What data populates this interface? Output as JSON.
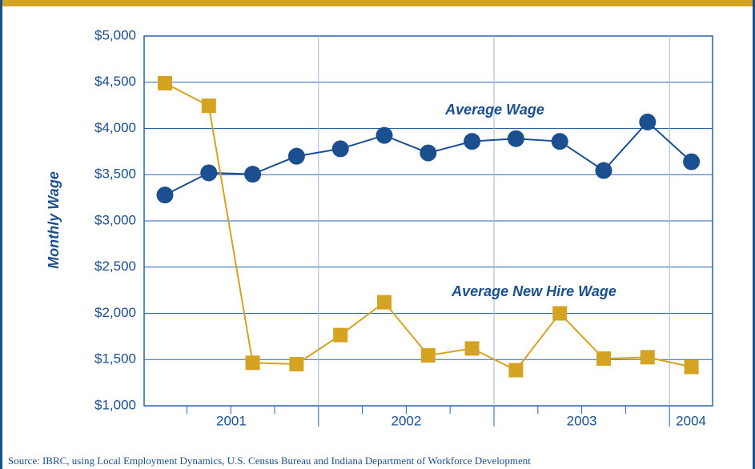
{
  "chart_data": {
    "type": "line",
    "y_label": "Monthly Wage",
    "categories": [
      "2001",
      null,
      null,
      null,
      "2002",
      null,
      null,
      null,
      "2003",
      null,
      null,
      null,
      "2004"
    ],
    "series": [
      {
        "name": "Average Wage",
        "color": "#1b4f8f",
        "marker": "circle",
        "values": [
          3280,
          3520,
          3505,
          3700,
          3780,
          3925,
          3735,
          3860,
          3890,
          3860,
          3545,
          4070,
          3640
        ]
      },
      {
        "name": "Average New Hire Wage",
        "color": "#d4a321",
        "marker": "square",
        "values": [
          4490,
          4245,
          1465,
          1450,
          1765,
          2120,
          1545,
          1620,
          1385,
          2000,
          1510,
          1525,
          1420
        ]
      }
    ],
    "ylim": [
      1000,
      5000
    ],
    "yticks": [
      {
        "value": 1000,
        "label": "$1,000"
      },
      {
        "value": 1500,
        "label": "$1,500"
      },
      {
        "value": 2000,
        "label": "$2,000"
      },
      {
        "value": 2500,
        "label": "$2,500"
      },
      {
        "value": 3000,
        "label": "$3,000"
      },
      {
        "value": 3500,
        "label": "$3,500"
      },
      {
        "value": 4000,
        "label": "$4,000"
      },
      {
        "value": 4500,
        "label": "$4,500"
      },
      {
        "value": 5000,
        "label": "$5,000"
      }
    ],
    "grid": true,
    "source": "Source: IBRC, using Local Employment Dynamics, U.S. Census Bureau and Indiana Department of Workforce Development"
  }
}
